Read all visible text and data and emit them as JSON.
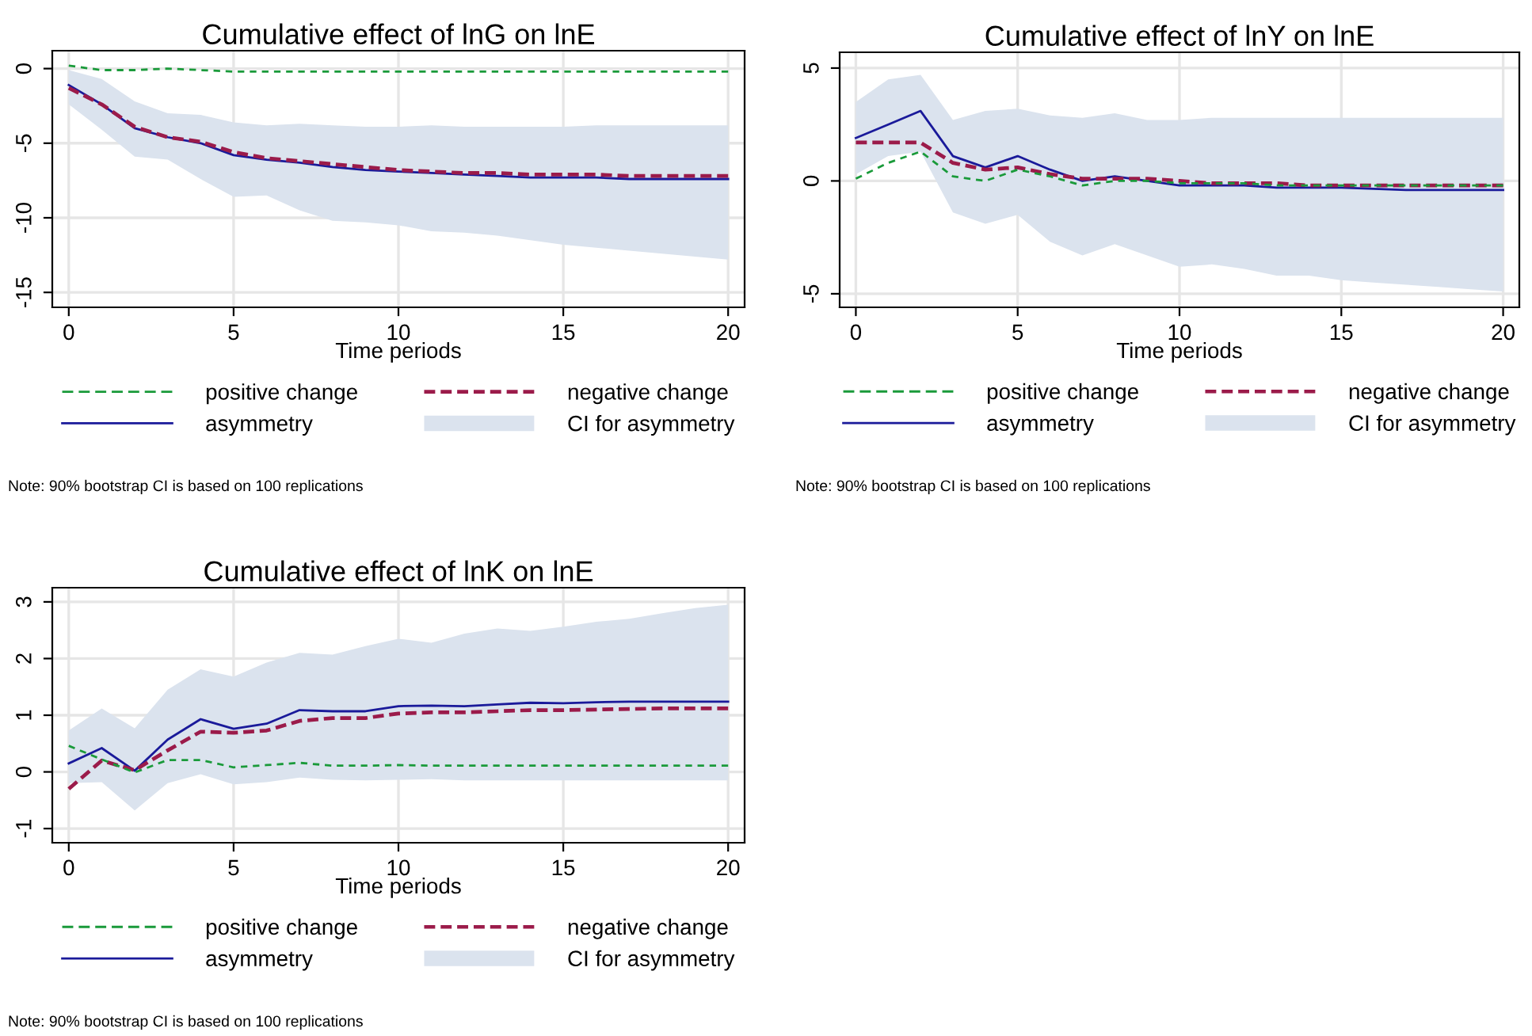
{
  "chart_data": [
    {
      "type": "line",
      "title": "Cumulative effect of lnG on lnE",
      "xlabel": "Time periods",
      "x": [
        0,
        1,
        2,
        3,
        4,
        5,
        6,
        7,
        8,
        9,
        10,
        11,
        12,
        13,
        14,
        15,
        16,
        17,
        18,
        19,
        20
      ],
      "xlim": [
        -0.5,
        20.5
      ],
      "xticks": [
        0,
        5,
        10,
        15,
        20
      ],
      "ylim": [
        -16,
        1.2
      ],
      "yticks": [
        {
          "value": -15,
          "label": "-15"
        },
        {
          "value": -10,
          "label": "-10"
        },
        {
          "value": -5,
          "label": "-5"
        },
        0
      ],
      "grid": true,
      "legend": "bottom",
      "annotations": [
        "CI for asymmetry",
        "Note: 90% bootstrap CI is based on 100 replications"
      ],
      "series": [
        {
          "name": "positive change",
          "color": "#1a9a3a",
          "line_style": "dashed",
          "values": [
            0.2,
            -0.1,
            -0.1,
            0,
            -0.1,
            -0.2,
            -0.2,
            -0.2,
            -0.2,
            -0.2,
            -0.2,
            -0.2,
            -0.2,
            -0.2,
            -0.2,
            -0.2,
            -0.2,
            -0.2,
            -0.2,
            -0.2,
            -0.2
          ]
        },
        {
          "name": "negative change",
          "color": "#9b1b4a",
          "line_style": "dashed",
          "values": [
            -1.3,
            -2.4,
            -3.9,
            -4.6,
            -4.9,
            -5.6,
            -6.0,
            -6.2,
            -6.4,
            -6.6,
            -6.8,
            -6.9,
            -7.0,
            -7.0,
            -7.1,
            -7.1,
            -7.1,
            -7.2,
            -7.2,
            -7.2,
            -7.2
          ]
        },
        {
          "name": "asymmetry",
          "color": "#1a1a9a",
          "line_style": "solid",
          "values": [
            -1.1,
            -2.4,
            -4.0,
            -4.6,
            -5.0,
            -5.8,
            -6.1,
            -6.3,
            -6.6,
            -6.8,
            -6.9,
            -7.0,
            -7.1,
            -7.2,
            -7.3,
            -7.3,
            -7.3,
            -7.4,
            -7.4,
            -7.4,
            -7.4
          ],
          "lower": [
            -2.4,
            -4.1,
            -5.9,
            -6.1,
            -7.4,
            -8.6,
            -8.5,
            -9.5,
            -10.2,
            -10.3,
            -10.5,
            -10.9,
            -11.0,
            -11.2,
            -11.5,
            -11.8,
            -12.0,
            -12.2,
            -12.4,
            -12.6,
            -12.8
          ],
          "upper": [
            -0.1,
            -0.7,
            -2.2,
            -3.0,
            -3.1,
            -3.6,
            -3.8,
            -3.7,
            -3.8,
            -3.9,
            -3.9,
            -3.8,
            -3.9,
            -3.9,
            -3.9,
            -3.9,
            -3.8,
            -3.8,
            -3.8,
            -3.8,
            -3.8
          ]
        }
      ]
    },
    {
      "type": "line",
      "title": "Cumulative effect of lnY on lnE",
      "xlabel": "Time periods",
      "x": [
        0,
        1,
        2,
        3,
        4,
        5,
        6,
        7,
        8,
        9,
        10,
        11,
        12,
        13,
        14,
        15,
        16,
        17,
        18,
        19,
        20
      ],
      "xlim": [
        -0.5,
        20.5
      ],
      "xticks": [
        0,
        5,
        10,
        15,
        20
      ],
      "ylim": [
        -5.6,
        5.7
      ],
      "yticks": [
        {
          "value": -5,
          "label": "-5"
        },
        0,
        5
      ],
      "grid": true,
      "legend": "bottom",
      "annotations": [
        "CI for asymmetry",
        "Note: 90% bootstrap CI is based on 100 replications"
      ],
      "series": [
        {
          "name": "positive change",
          "color": "#1a9a3a",
          "line_style": "dashed",
          "values": [
            0.1,
            0.8,
            1.3,
            0.2,
            0.0,
            0.5,
            0.2,
            -0.2,
            0.0,
            0.0,
            -0.1,
            -0.1,
            -0.1,
            -0.2,
            -0.2,
            -0.2,
            -0.2,
            -0.2,
            -0.2,
            -0.2,
            -0.2
          ]
        },
        {
          "name": "negative change",
          "color": "#9b1b4a",
          "line_style": "dashed",
          "values": [
            1.7,
            1.7,
            1.7,
            0.8,
            0.5,
            0.6,
            0.3,
            0.1,
            0.1,
            0.1,
            0.0,
            -0.1,
            -0.1,
            -0.1,
            -0.2,
            -0.2,
            -0.2,
            -0.2,
            -0.2,
            -0.2,
            -0.2
          ]
        },
        {
          "name": "asymmetry",
          "color": "#1a1a9a",
          "line_style": "solid",
          "values": [
            1.9,
            2.5,
            3.1,
            1.1,
            0.6,
            1.1,
            0.5,
            0.0,
            0.2,
            0.0,
            -0.2,
            -0.2,
            -0.2,
            -0.3,
            -0.3,
            -0.3,
            -0.35,
            -0.4,
            -0.4,
            -0.4,
            -0.4
          ],
          "lower": [
            0.3,
            1.1,
            1.3,
            -1.4,
            -1.9,
            -1.5,
            -2.7,
            -3.3,
            -2.8,
            -3.3,
            -3.8,
            -3.7,
            -3.9,
            -4.2,
            -4.2,
            -4.4,
            -4.5,
            -4.6,
            -4.7,
            -4.8,
            -4.9
          ],
          "upper": [
            3.5,
            4.5,
            4.7,
            2.7,
            3.1,
            3.2,
            2.9,
            2.8,
            3.0,
            2.7,
            2.7,
            2.8,
            2.8,
            2.8,
            2.8,
            2.8,
            2.8,
            2.8,
            2.8,
            2.8,
            2.8
          ]
        }
      ]
    },
    {
      "type": "line",
      "title": "Cumulative effect of lnK on lnE",
      "xlabel": "Time periods",
      "x": [
        0,
        1,
        2,
        3,
        4,
        5,
        6,
        7,
        8,
        9,
        10,
        11,
        12,
        13,
        14,
        15,
        16,
        17,
        18,
        19,
        20
      ],
      "xlim": [
        -0.5,
        20.5
      ],
      "xticks": [
        0,
        5,
        10,
        15,
        20
      ],
      "ylim": [
        -1.25,
        3.25
      ],
      "yticks": [
        {
          "value": -1,
          "label": "-1"
        },
        0,
        1,
        2,
        3
      ],
      "grid": true,
      "legend": "bottom",
      "annotations": [
        "CI for asymmetry",
        "Note: 90% bootstrap CI is based on 100 replications"
      ],
      "series": [
        {
          "name": "positive change",
          "color": "#1a9a3a",
          "line_style": "dashed",
          "values": [
            0.46,
            0.22,
            -0.01,
            0.21,
            0.21,
            0.08,
            0.12,
            0.16,
            0.11,
            0.11,
            0.12,
            0.11,
            0.11,
            0.11,
            0.11,
            0.11,
            0.11,
            0.11,
            0.11,
            0.11,
            0.11
          ]
        },
        {
          "name": "negative change",
          "color": "#9b1b4a",
          "line_style": "dashed",
          "values": [
            -0.3,
            0.2,
            0.03,
            0.38,
            0.71,
            0.69,
            0.73,
            0.9,
            0.95,
            0.95,
            1.03,
            1.05,
            1.05,
            1.07,
            1.09,
            1.09,
            1.1,
            1.11,
            1.12,
            1.12,
            1.12
          ]
        },
        {
          "name": "asymmetry",
          "color": "#1a1a9a",
          "line_style": "solid",
          "values": [
            0.15,
            0.42,
            0.02,
            0.57,
            0.93,
            0.76,
            0.85,
            1.09,
            1.07,
            1.07,
            1.16,
            1.17,
            1.16,
            1.19,
            1.22,
            1.21,
            1.23,
            1.24,
            1.24,
            1.24,
            1.24
          ],
          "lower": [
            -0.2,
            -0.18,
            -0.68,
            -0.2,
            -0.04,
            -0.22,
            -0.18,
            -0.1,
            -0.14,
            -0.15,
            -0.14,
            -0.13,
            -0.15,
            -0.15,
            -0.15,
            -0.15,
            -0.15,
            -0.15,
            -0.15,
            -0.15,
            -0.15
          ],
          "upper": [
            0.73,
            1.12,
            0.77,
            1.45,
            1.81,
            1.68,
            1.93,
            2.1,
            2.07,
            2.22,
            2.35,
            2.28,
            2.44,
            2.53,
            2.49,
            2.56,
            2.65,
            2.7,
            2.8,
            2.89,
            2.95
          ]
        }
      ]
    }
  ]
}
